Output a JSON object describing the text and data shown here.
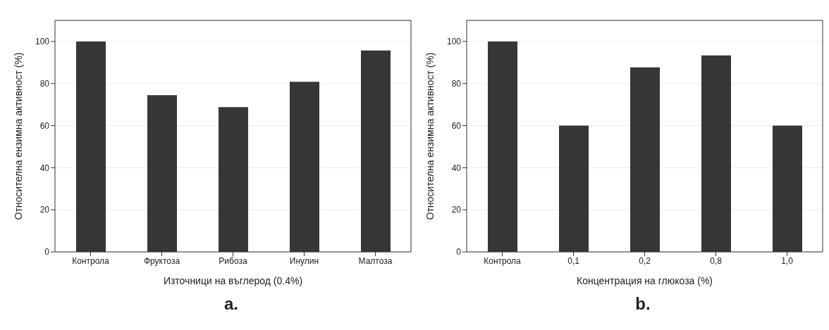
{
  "chart_data": [
    {
      "type": "bar",
      "categories": [
        "Контрола",
        "Фруктоза",
        "Рибоза",
        "Инулин",
        "Малтоза"
      ],
      "values": [
        100,
        74.5,
        68.8,
        80.8,
        95.7
      ],
      "color": "#363636",
      "xlabel": "Източници на въглерод (0.4%)",
      "ylabel": "Относителна ензимна активност (%)",
      "ylim": [
        0,
        110
      ],
      "yticks": [
        0,
        20,
        40,
        60,
        80,
        100
      ],
      "grid": "y",
      "annotations": [
        "a."
      ]
    },
    {
      "type": "bar",
      "categories": [
        "Контрола",
        "0,1",
        "0,2",
        "0,8",
        "1,0"
      ],
      "values": [
        100,
        60.0,
        87.7,
        93.4,
        60.0
      ],
      "color": "#363636",
      "xlabel": "Концентрация на глюкоза (%)",
      "ylabel": "Относителна ензимна активност (%)",
      "ylim": [
        0,
        110
      ],
      "yticks": [
        0,
        20,
        40,
        60,
        80,
        100
      ],
      "grid": "y",
      "annotations": [
        "b."
      ]
    }
  ]
}
